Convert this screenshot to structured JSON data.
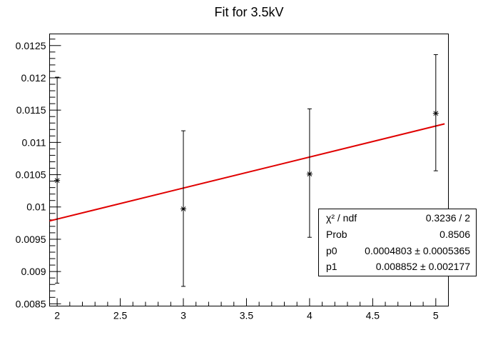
{
  "chart_data": {
    "type": "scatter",
    "title": "Fit for 3.5kV",
    "xlabel": "",
    "ylabel": "",
    "xlim": [
      1.94,
      5.1
    ],
    "ylim": [
      0.008465,
      0.01268
    ],
    "x_ticks": [
      2,
      2.5,
      3,
      3.5,
      4,
      4.5,
      5
    ],
    "x_tick_labels": [
      "2",
      "2.5",
      "3",
      "3.5",
      "4",
      "4.5",
      "5"
    ],
    "y_ticks": [
      0.0085,
      0.009,
      0.0095,
      0.01,
      0.0105,
      0.011,
      0.0115,
      0.012,
      0.0125
    ],
    "y_tick_labels": [
      "0.0085",
      "0.009",
      "0.0095",
      "0.01",
      "0.0105",
      "0.011",
      "0.0115",
      "0.012",
      "0.0125"
    ],
    "series": [
      {
        "marker": "asterisk",
        "color": "#000000",
        "points": [
          {
            "x": 2,
            "y": 0.01041,
            "ylow": 0.00882,
            "yhigh": 0.01201
          },
          {
            "x": 3,
            "y": 0.00997,
            "ylow": 0.00877,
            "yhigh": 0.01118
          },
          {
            "x": 4,
            "y": 0.01051,
            "ylow": 0.00953,
            "yhigh": 0.01152
          },
          {
            "x": 5,
            "y": 0.01145,
            "ylow": 0.01056,
            "yhigh": 0.01236
          }
        ]
      }
    ],
    "fit_line": {
      "color": "#e00000",
      "p0": 0.0004803,
      "p1": 0.008852,
      "x_range": [
        1.94,
        5.07
      ]
    },
    "stats_box": {
      "rows": [
        {
          "key": "χ² / ndf",
          "value": "0.3236 / 2"
        },
        {
          "key": "Prob",
          "value": "0.8506"
        },
        {
          "key": "p0",
          "value": "0.0004803 ± 0.0005365"
        },
        {
          "key": "p1",
          "value": "0.008852 ± 0.002177"
        }
      ]
    }
  }
}
